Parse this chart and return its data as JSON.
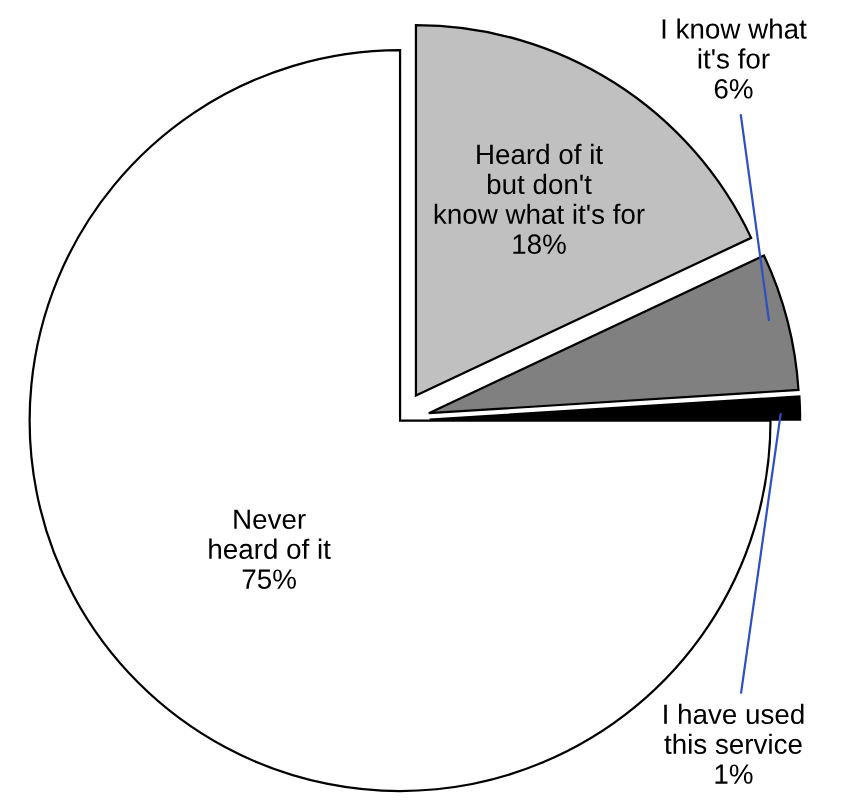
{
  "chart_data": {
    "type": "pie",
    "categories": [
      "Never\nheard of it",
      "Heard of it\nbut don't\nknow what it's for",
      "I know what\nit's for",
      "I have used\nthis service"
    ],
    "values": [
      75,
      18,
      6,
      1
    ],
    "value_labels": [
      "75%",
      "18%",
      "6%",
      "1%"
    ],
    "colors": [
      "#ffffff",
      "#c0c0c0",
      "#808080",
      "#000000"
    ]
  }
}
